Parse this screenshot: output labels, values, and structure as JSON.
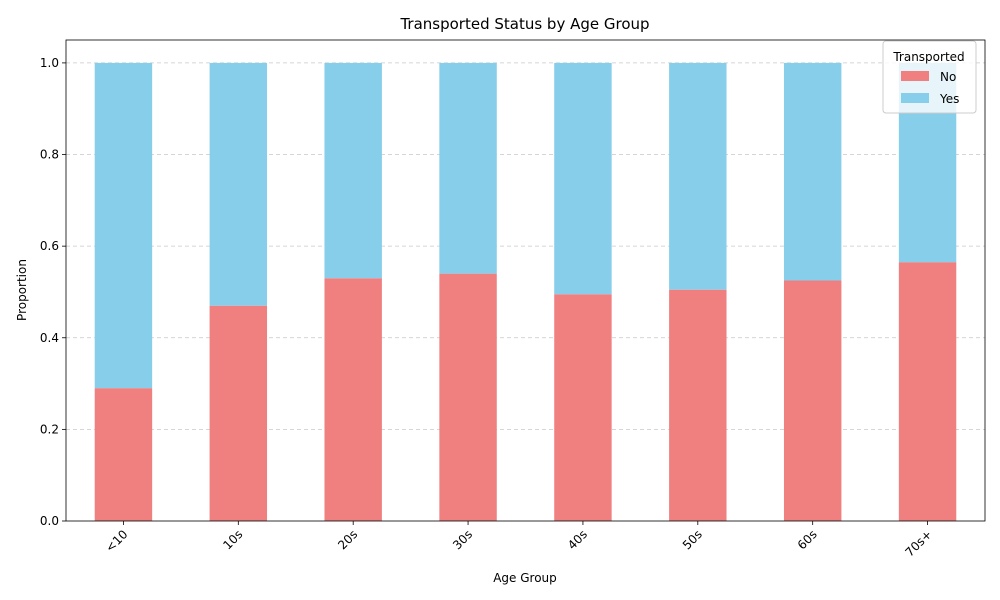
{
  "chart_data": {
    "type": "bar",
    "stacked": true,
    "title": "Transported Status by Age Group",
    "xlabel": "Age Group",
    "ylabel": "Proportion",
    "categories": [
      "<10",
      "10s",
      "20s",
      "30s",
      "40s",
      "50s",
      "60s",
      "70s+"
    ],
    "series": [
      {
        "name": "No",
        "color": "#f08080",
        "values": [
          0.29,
          0.47,
          0.53,
          0.54,
          0.495,
          0.505,
          0.525,
          0.565
        ]
      },
      {
        "name": "Yes",
        "color": "#87ceeb",
        "values": [
          0.71,
          0.53,
          0.47,
          0.46,
          0.505,
          0.495,
          0.475,
          0.435
        ]
      }
    ],
    "ylim": [
      0,
      1.05
    ],
    "yticks": [
      "0.0",
      "0.2",
      "0.4",
      "0.6",
      "0.8",
      "1.0"
    ],
    "grid": "y-dashed",
    "legend": {
      "title": "Transported",
      "placement": "top-right"
    }
  }
}
